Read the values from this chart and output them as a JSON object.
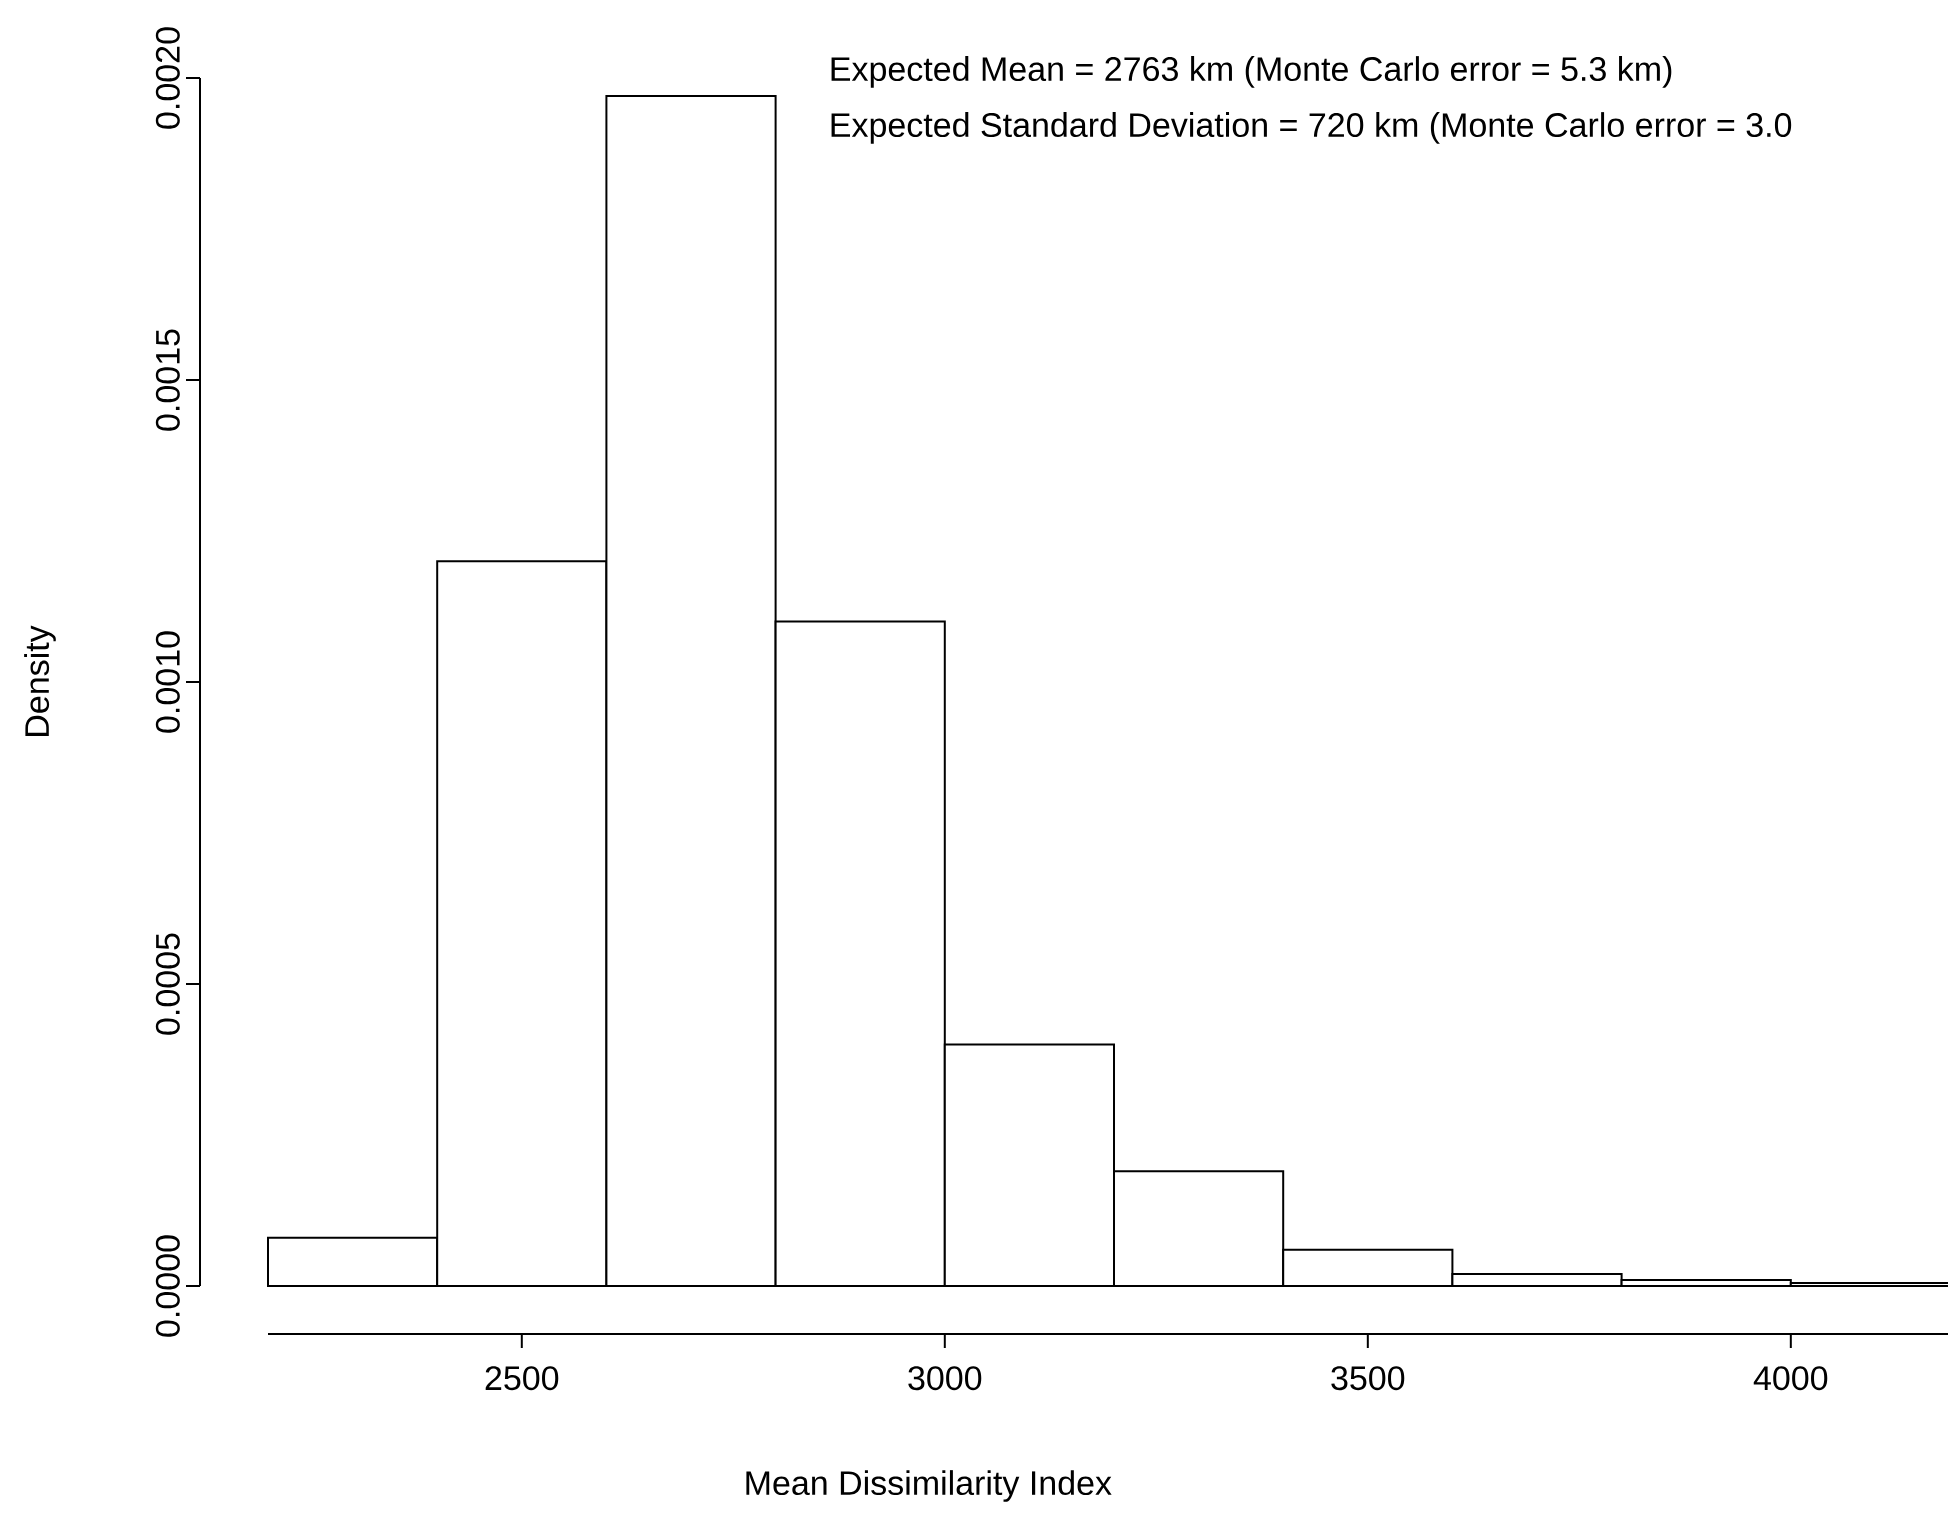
{
  "chart_data": {
    "type": "histogram",
    "xlabel": "Mean Dissimilarity Index",
    "ylabel": "Density",
    "annotations": [
      "Expected Mean = 2763 km (Monte Carlo error = 5.3 km)",
      "Expected Standard Deviation = 720 km (Monte Carlo error = 3.0"
    ],
    "bins": [
      2200,
      2400,
      2600,
      2800,
      3000,
      3200,
      3400,
      3600,
      3800,
      4000,
      4200
    ],
    "values": [
      8e-05,
      0.0012,
      0.00197,
      0.0011,
      0.0004,
      0.00019,
      6e-05,
      2e-05,
      1e-05,
      5e-06
    ],
    "xlim": [
      2200,
      4200
    ],
    "ylim": [
      0,
      0.002
    ],
    "xticks": [
      2500,
      3000,
      3500,
      4000
    ],
    "yticks": [
      {
        "value": 0,
        "label": "0.0000"
      },
      {
        "value": 0.0005,
        "label": "0.0005"
      },
      {
        "value": 0.001,
        "label": "0.0010"
      },
      {
        "value": 0.0015,
        "label": "0.0015"
      },
      {
        "value": 0.002,
        "label": "0.0020"
      }
    ]
  }
}
